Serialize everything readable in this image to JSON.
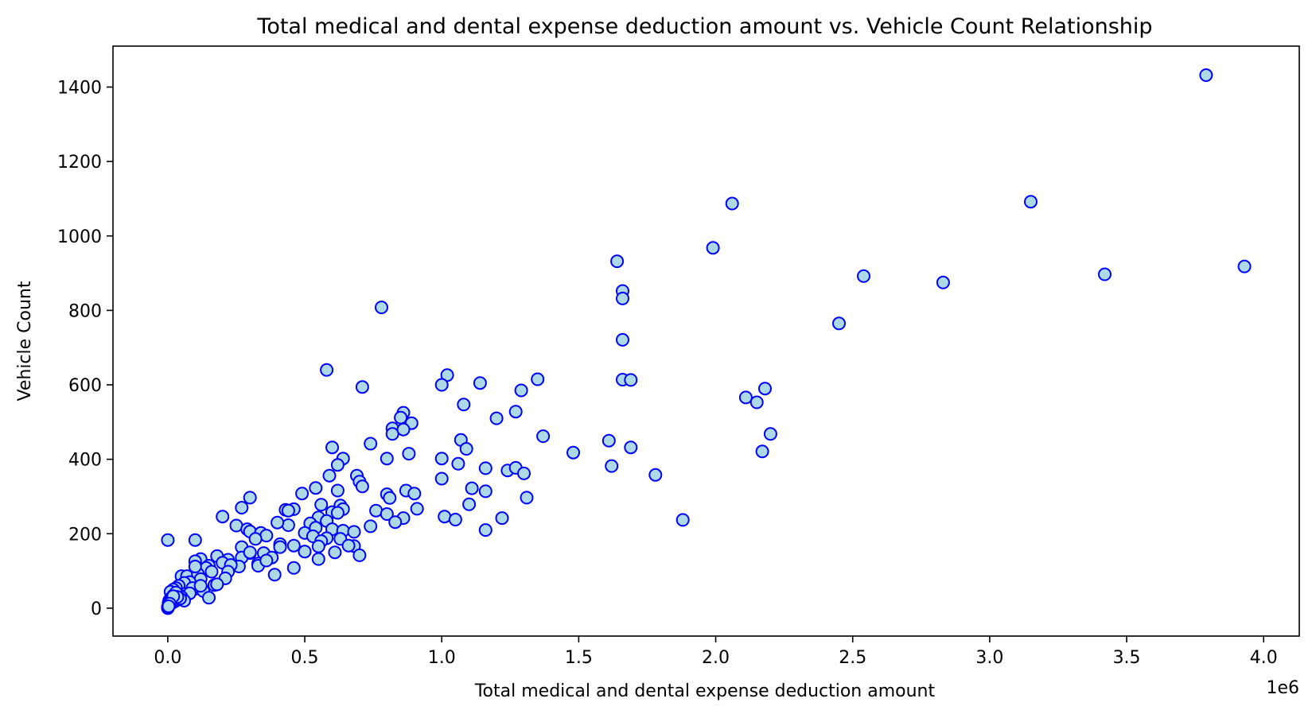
{
  "chart_data": {
    "type": "scatter",
    "title": "Total medical and dental expense deduction amount vs. Vehicle Count Relationship",
    "xlabel": "Total medical and dental expense deduction amount",
    "ylabel": "Vehicle Count",
    "x_offset_label": "1e6",
    "xlim": [
      -200000,
      4130000
    ],
    "ylim": [
      -75,
      1510
    ],
    "x_ticks": [
      0,
      500000,
      1000000,
      1500000,
      2000000,
      2500000,
      3000000,
      3500000,
      4000000
    ],
    "x_tick_labels": [
      "0.0",
      "0.5",
      "1.0",
      "1.5",
      "2.0",
      "2.5",
      "3.0",
      "3.5",
      "4.0"
    ],
    "y_ticks": [
      0,
      200,
      400,
      600,
      800,
      1000,
      1200,
      1400
    ],
    "y_tick_labels": [
      "0",
      "200",
      "400",
      "600",
      "800",
      "1000",
      "1200",
      "1400"
    ],
    "grid": false,
    "marker_face_color": "#add8e6",
    "marker_edge_color": "#0000ff",
    "x": [
      3790000,
      2060000,
      3150000,
      1990000,
      3930000,
      1640000,
      2540000,
      3420000,
      2830000,
      1660000,
      1660000,
      780000,
      2450000,
      1660000,
      580000,
      1350000,
      1660000,
      1690000,
      710000,
      1020000,
      1000000,
      1140000,
      2180000,
      1290000,
      2110000,
      2150000,
      1080000,
      860000,
      850000,
      1270000,
      1200000,
      890000,
      820000,
      820000,
      860000,
      2200000,
      1370000,
      740000,
      1070000,
      1610000,
      1690000,
      1090000,
      600000,
      2170000,
      1480000,
      880000,
      640000,
      800000,
      1000000,
      1060000,
      1620000,
      620000,
      1160000,
      1240000,
      1270000,
      1300000,
      1780000,
      1000000,
      590000,
      690000,
      700000,
      710000,
      1110000,
      540000,
      1160000,
      870000,
      900000,
      490000,
      620000,
      800000,
      300000,
      1310000,
      630000,
      810000,
      1100000,
      560000,
      460000,
      270000,
      430000,
      640000,
      760000,
      600000,
      910000,
      800000,
      200000,
      440000,
      860000,
      1010000,
      1050000,
      1220000,
      1880000,
      830000,
      550000,
      620000,
      580000,
      520000,
      440000,
      400000,
      740000,
      1160000,
      540000,
      600000,
      250000,
      640000,
      290000,
      300000,
      340000,
      500000,
      530000,
      680000,
      580000,
      360000,
      630000,
      100000,
      320000,
      560000,
      410000,
      460000,
      270000,
      680000,
      660000,
      550000,
      500000,
      610000,
      350000,
      410000,
      700000,
      300000,
      220000,
      180000,
      270000,
      120000,
      100000,
      150000,
      200000,
      380000,
      330000,
      260000,
      500000,
      550000,
      230000,
      330000,
      360000,
      140000,
      220000,
      50000,
      70000,
      160000,
      110000,
      120000,
      460000,
      390000,
      300000,
      170000,
      80000,
      100000,
      130000,
      180000,
      210000,
      60000,
      90000,
      130000,
      40000,
      30000,
      20000,
      60000,
      80000,
      10000,
      20000,
      30000,
      40000,
      50000,
      10000,
      5000,
      15000,
      25000,
      8000,
      3000,
      12000,
      60000,
      0,
      150000,
      180000,
      100000,
      120000,
      0,
      2000,
      4000,
      30000,
      6000,
      1000,
      10000,
      25000,
      45000,
      35000,
      20000,
      7000,
      500,
      1500,
      3000
    ],
    "y": [
      1432,
      1087,
      1092,
      968,
      918,
      932,
      892,
      897,
      875,
      852,
      832,
      808,
      765,
      721,
      640,
      615,
      614,
      613,
      594,
      626,
      600,
      605,
      590,
      585,
      566,
      553,
      547,
      525,
      512,
      528,
      510,
      497,
      483,
      468,
      480,
      468,
      462,
      442,
      452,
      450,
      432,
      428,
      432,
      421,
      418,
      415,
      402,
      402,
      402,
      388,
      382,
      385,
      376,
      370,
      377,
      362,
      358,
      348,
      356,
      356,
      340,
      327,
      322,
      323,
      314,
      316,
      308,
      308,
      316,
      306,
      297,
      297,
      276,
      296,
      279,
      278,
      266,
      270,
      264,
      266,
      262,
      258,
      267,
      253,
      246,
      262,
      242,
      246,
      238,
      242,
      237,
      231,
      244,
      256,
      234,
      228,
      223,
      230,
      220,
      210,
      216,
      212,
      222,
      208,
      212,
      206,
      202,
      202,
      193,
      205,
      188,
      195,
      186,
      183,
      186,
      180,
      172,
      168,
      164,
      167,
      168,
      166,
      152,
      150,
      148,
      164,
      142,
      148,
      130,
      140,
      136,
      132,
      126,
      114,
      122,
      136,
      120,
      112,
      152,
      132,
      116,
      114,
      128,
      108,
      98,
      86,
      86,
      98,
      92,
      78,
      108,
      90,
      150,
      62,
      70,
      52,
      48,
      64,
      80,
      68,
      54,
      46,
      60,
      54,
      50,
      38,
      40,
      44,
      34,
      28,
      36,
      30,
      26,
      20,
      24,
      18,
      16,
      14,
      12,
      20,
      183,
      28,
      64,
      112,
      60,
      2,
      6,
      10,
      42,
      8,
      4,
      14,
      22,
      26,
      30,
      32,
      12,
      0,
      3,
      5
    ]
  }
}
